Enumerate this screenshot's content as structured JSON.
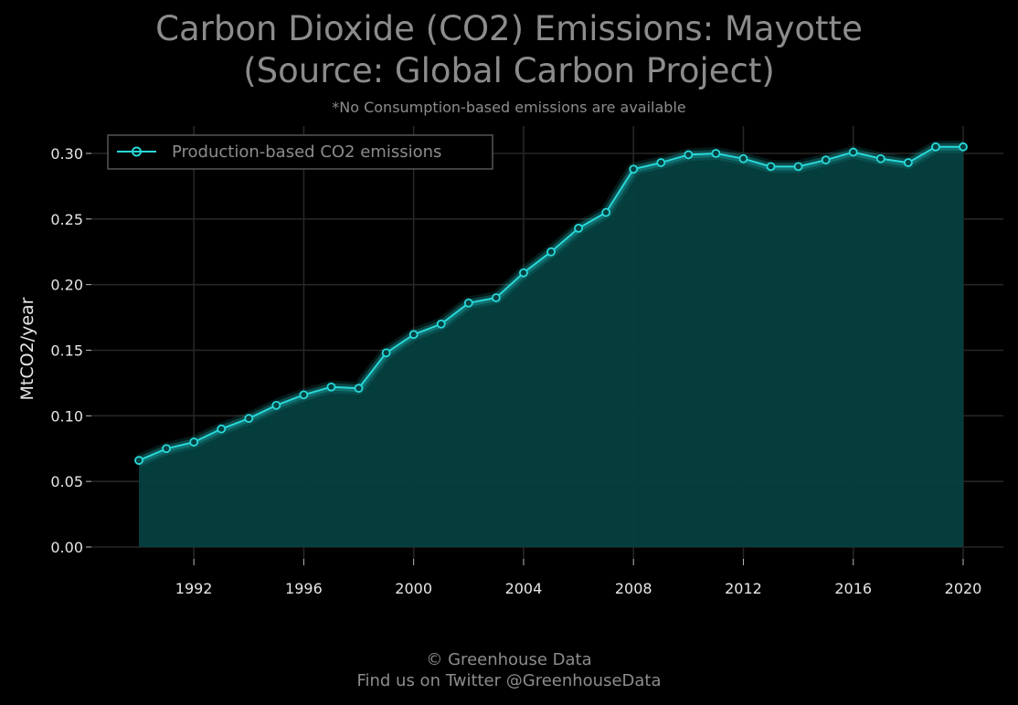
{
  "title_line_1": "Carbon Dioxide (CO2) Emissions: Mayotte",
  "title_line_2": "(Source: Global Carbon Project)",
  "subtitle": "*No Consumption-based emissions are available",
  "footer": {
    "credit": "© Greenhouse Data",
    "twitter": "Find us on Twitter @GreenhouseData"
  },
  "colors": {
    "background": "#000000",
    "line": "#29d8d8",
    "fill": "#053f3f",
    "grid": "#262626",
    "text": "#e6e6e6",
    "title": "#8c8c8c"
  },
  "chart_data": {
    "type": "area",
    "ylabel": "MtCO2/year",
    "xlabel": "",
    "ylim": [
      0,
      0.32
    ],
    "xlim": [
      1988.5,
      2021.5
    ],
    "yticks": [
      "0.00",
      "0.05",
      "0.10",
      "0.15",
      "0.20",
      "0.25",
      "0.30"
    ],
    "xticks": [
      "1992",
      "1996",
      "2000",
      "2004",
      "2008",
      "2012",
      "2016",
      "2020"
    ],
    "grid": true,
    "legend_position": "top-left",
    "series": [
      {
        "name": "Production-based CO2 emissions",
        "x": [
          1990,
          1991,
          1992,
          1993,
          1994,
          1995,
          1996,
          1997,
          1998,
          1999,
          2000,
          2001,
          2002,
          2003,
          2004,
          2005,
          2006,
          2007,
          2008,
          2009,
          2010,
          2011,
          2012,
          2013,
          2014,
          2015,
          2016,
          2017,
          2018,
          2019,
          2020
        ],
        "values": [
          0.066,
          0.075,
          0.08,
          0.09,
          0.098,
          0.108,
          0.116,
          0.122,
          0.121,
          0.148,
          0.162,
          0.17,
          0.186,
          0.19,
          0.209,
          0.225,
          0.243,
          0.255,
          0.288,
          0.293,
          0.299,
          0.3,
          0.296,
          0.29,
          0.29,
          0.295,
          0.301,
          0.296,
          0.293,
          0.305,
          0.305
        ]
      }
    ]
  }
}
